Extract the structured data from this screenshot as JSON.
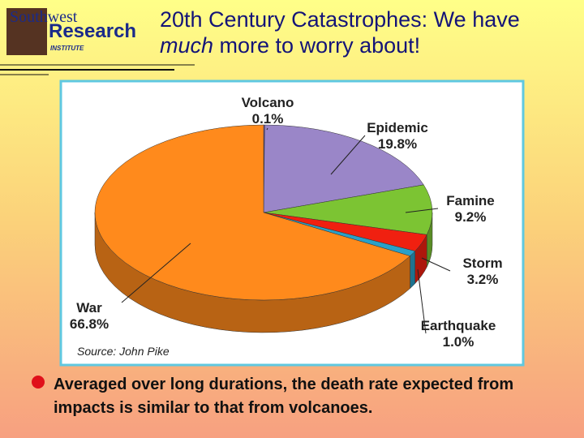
{
  "logo": {
    "line1": "Southwest",
    "line2": "Research",
    "line3": "INSTITUTE"
  },
  "title_parts": [
    "20th Century Catastrophes:  We have ",
    "much",
    " more to worry about!"
  ],
  "chart_data": {
    "type": "pie",
    "categories": [
      "Volcano",
      "Epidemic",
      "Famine",
      "Storm",
      "Earthquake",
      "War"
    ],
    "values": [
      0.1,
      19.8,
      9.2,
      3.2,
      1.0,
      66.8
    ],
    "value_labels": [
      "0.1%",
      "19.8%",
      "9.2%",
      "3.2%",
      "1.0%",
      "66.8%"
    ],
    "colors": [
      "#6a4fa0",
      "#9a86c8",
      "#7cc433",
      "#f02010",
      "#2aa0c8",
      "#ff8a1c"
    ],
    "source": "Source: John Pike"
  },
  "bullet": "Averaged over long durations, the death rate expected from impacts is similar to that from volcanoes."
}
